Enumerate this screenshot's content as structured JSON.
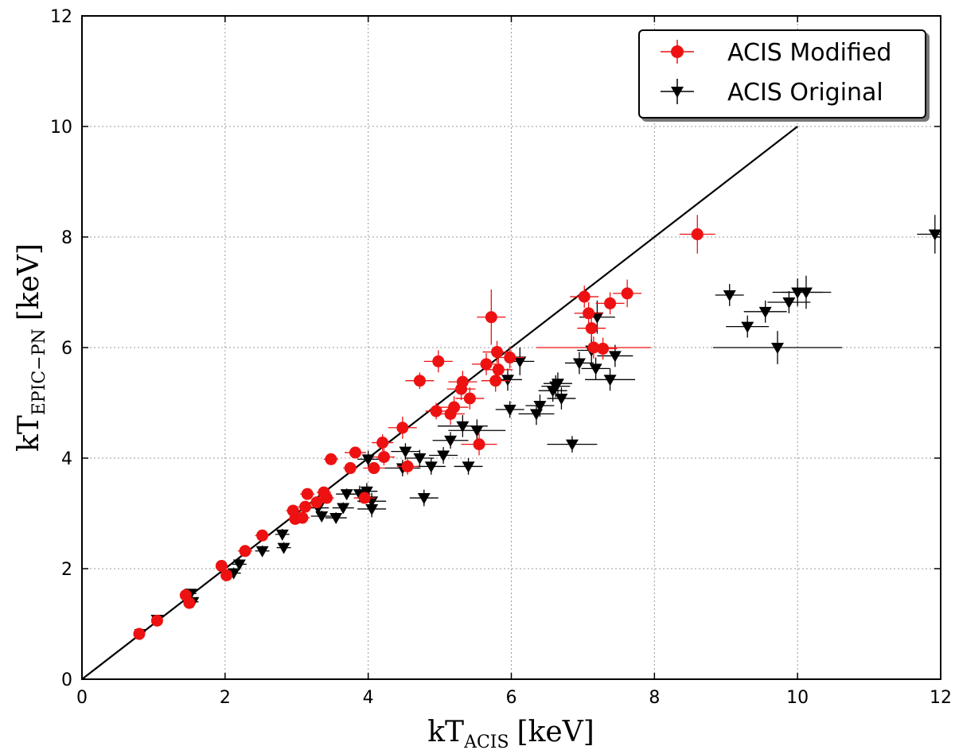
{
  "chart_data": {
    "type": "scatter",
    "title": "",
    "xlabel": {
      "main": "kT",
      "sub": "ACIS",
      "unit": "[keV]"
    },
    "ylabel": {
      "main": "kT",
      "sub": "EPIC−PN",
      "unit": "[keV]"
    },
    "xlim": [
      0,
      12
    ],
    "ylim": [
      0,
      12
    ],
    "xticks": [
      "0",
      "2",
      "4",
      "6",
      "8",
      "10",
      "12"
    ],
    "yticks": [
      "0",
      "2",
      "4",
      "6",
      "8",
      "10",
      "12"
    ],
    "grid": true,
    "legend_position": "top-right",
    "reference_line": {
      "x": [
        0,
        10
      ],
      "y": [
        0,
        10
      ]
    },
    "series": [
      {
        "name": "ACIS Modified",
        "marker": "circle",
        "color": "#ee1111",
        "points": [
          [
            0.8,
            0.82,
            0.06,
            0.06
          ],
          [
            1.05,
            1.06,
            0.06,
            0.06
          ],
          [
            1.45,
            1.52,
            0.08,
            0.08
          ],
          [
            1.5,
            1.38,
            0.08,
            0.08
          ],
          [
            1.95,
            2.05,
            0.08,
            0.08
          ],
          [
            2.02,
            1.88,
            0.08,
            0.08
          ],
          [
            2.28,
            2.32,
            0.1,
            0.1
          ],
          [
            2.52,
            2.6,
            0.1,
            0.1
          ],
          [
            2.95,
            3.05,
            0.1,
            0.1
          ],
          [
            2.98,
            2.9,
            0.1,
            0.1
          ],
          [
            3.08,
            2.92,
            0.1,
            0.1
          ],
          [
            3.12,
            3.12,
            0.1,
            0.1
          ],
          [
            3.15,
            3.35,
            0.1,
            0.1
          ],
          [
            3.28,
            3.2,
            0.1,
            0.1
          ],
          [
            3.38,
            3.38,
            0.1,
            0.1
          ],
          [
            3.42,
            3.28,
            0.1,
            0.1
          ],
          [
            3.48,
            3.98,
            0.1,
            0.1
          ],
          [
            3.75,
            3.82,
            0.1,
            0.1
          ],
          [
            3.82,
            4.1,
            0.15,
            0.1
          ],
          [
            3.95,
            3.28,
            0.15,
            0.1
          ],
          [
            4.08,
            3.82,
            0.15,
            0.1
          ],
          [
            4.2,
            4.28,
            0.15,
            0.15
          ],
          [
            4.22,
            4.02,
            0.15,
            0.15
          ],
          [
            4.48,
            4.55,
            0.2,
            0.2
          ],
          [
            4.55,
            3.85,
            0.15,
            0.15
          ],
          [
            4.72,
            5.4,
            0.2,
            0.15
          ],
          [
            4.95,
            4.85,
            0.15,
            0.15
          ],
          [
            4.98,
            5.75,
            0.2,
            0.2
          ],
          [
            5.15,
            4.8,
            0.2,
            0.2
          ],
          [
            5.2,
            4.92,
            0.2,
            0.2
          ],
          [
            5.3,
            5.25,
            0.2,
            0.2
          ],
          [
            5.32,
            5.38,
            0.2,
            0.2
          ],
          [
            5.42,
            5.08,
            0.2,
            0.2
          ],
          [
            5.55,
            4.25,
            0.25,
            0.2
          ],
          [
            5.65,
            5.7,
            0.2,
            0.2
          ],
          [
            5.72,
            6.55,
            0.2,
            0.5
          ],
          [
            5.78,
            5.4,
            0.2,
            0.2
          ],
          [
            5.8,
            5.92,
            0.2,
            0.2
          ],
          [
            5.82,
            5.6,
            0.2,
            0.2
          ],
          [
            5.98,
            5.82,
            0.2,
            0.2
          ],
          [
            7.02,
            6.92,
            0.2,
            0.2
          ],
          [
            7.08,
            6.62,
            0.2,
            0.2
          ],
          [
            7.12,
            6.35,
            0.2,
            0.2
          ],
          [
            7.15,
            6.0,
            0.8,
            0.2
          ],
          [
            7.28,
            5.98,
            0.2,
            0.2
          ],
          [
            7.38,
            6.8,
            0.2,
            0.2
          ],
          [
            7.62,
            6.98,
            0.2,
            0.25
          ],
          [
            8.6,
            8.05,
            0.25,
            0.35
          ]
        ]
      },
      {
        "name": "ACIS Original",
        "marker": "triangle-down",
        "color": "#000000",
        "points": [
          [
            0.82,
            0.82,
            0.06,
            0.06
          ],
          [
            1.05,
            1.08,
            0.06,
            0.06
          ],
          [
            1.52,
            1.55,
            0.08,
            0.08
          ],
          [
            1.55,
            1.4,
            0.08,
            0.08
          ],
          [
            2.12,
            1.92,
            0.1,
            0.1
          ],
          [
            2.2,
            2.08,
            0.1,
            0.1
          ],
          [
            2.52,
            2.32,
            0.1,
            0.1
          ],
          [
            2.8,
            2.62,
            0.1,
            0.1
          ],
          [
            2.82,
            2.38,
            0.1,
            0.1
          ],
          [
            3.3,
            3.1,
            0.15,
            0.1
          ],
          [
            3.35,
            2.95,
            0.15,
            0.1
          ],
          [
            3.55,
            2.92,
            0.15,
            0.1
          ],
          [
            3.65,
            3.1,
            0.15,
            0.1
          ],
          [
            3.7,
            3.35,
            0.15,
            0.1
          ],
          [
            3.88,
            3.35,
            0.15,
            0.15
          ],
          [
            3.98,
            3.4,
            0.15,
            0.15
          ],
          [
            4.0,
            3.98,
            0.15,
            0.15
          ],
          [
            4.05,
            3.22,
            0.2,
            0.15
          ],
          [
            4.05,
            3.08,
            0.2,
            0.15
          ],
          [
            4.48,
            3.82,
            0.25,
            0.15
          ],
          [
            4.52,
            4.12,
            0.2,
            0.15
          ],
          [
            4.72,
            4.0,
            0.2,
            0.15
          ],
          [
            4.78,
            3.28,
            0.2,
            0.15
          ],
          [
            4.88,
            3.85,
            0.2,
            0.15
          ],
          [
            5.05,
            4.05,
            0.2,
            0.15
          ],
          [
            5.15,
            4.32,
            0.25,
            0.15
          ],
          [
            5.32,
            4.58,
            0.35,
            0.2
          ],
          [
            5.4,
            3.85,
            0.2,
            0.15
          ],
          [
            5.52,
            4.5,
            0.4,
            0.2
          ],
          [
            5.95,
            5.42,
            0.2,
            0.2
          ],
          [
            5.98,
            4.88,
            0.2,
            0.15
          ],
          [
            6.12,
            5.75,
            0.2,
            0.25
          ],
          [
            6.35,
            4.8,
            0.25,
            0.2
          ],
          [
            6.4,
            4.95,
            0.2,
            0.2
          ],
          [
            6.58,
            5.22,
            0.2,
            0.2
          ],
          [
            6.62,
            5.3,
            0.2,
            0.2
          ],
          [
            6.65,
            5.35,
            0.2,
            0.2
          ],
          [
            6.7,
            5.08,
            0.2,
            0.2
          ],
          [
            6.85,
            4.25,
            0.35,
            0.15
          ],
          [
            6.95,
            5.72,
            0.2,
            0.2
          ],
          [
            7.12,
            5.95,
            0.2,
            0.3
          ],
          [
            7.18,
            5.62,
            0.2,
            0.2
          ],
          [
            7.2,
            6.55,
            0.25,
            0.3
          ],
          [
            7.38,
            5.42,
            0.35,
            0.2
          ],
          [
            7.45,
            5.85,
            0.25,
            0.2
          ],
          [
            9.05,
            6.95,
            0.2,
            0.2
          ],
          [
            9.3,
            6.38,
            0.3,
            0.2
          ],
          [
            9.55,
            6.65,
            0.3,
            0.2
          ],
          [
            9.72,
            6.0,
            0.9,
            0.3
          ],
          [
            9.88,
            6.82,
            0.3,
            0.2
          ],
          [
            10.0,
            7.0,
            0.35,
            0.25
          ],
          [
            10.12,
            7.0,
            0.35,
            0.3
          ],
          [
            11.92,
            8.05,
            0.25,
            0.35
          ]
        ]
      }
    ]
  }
}
